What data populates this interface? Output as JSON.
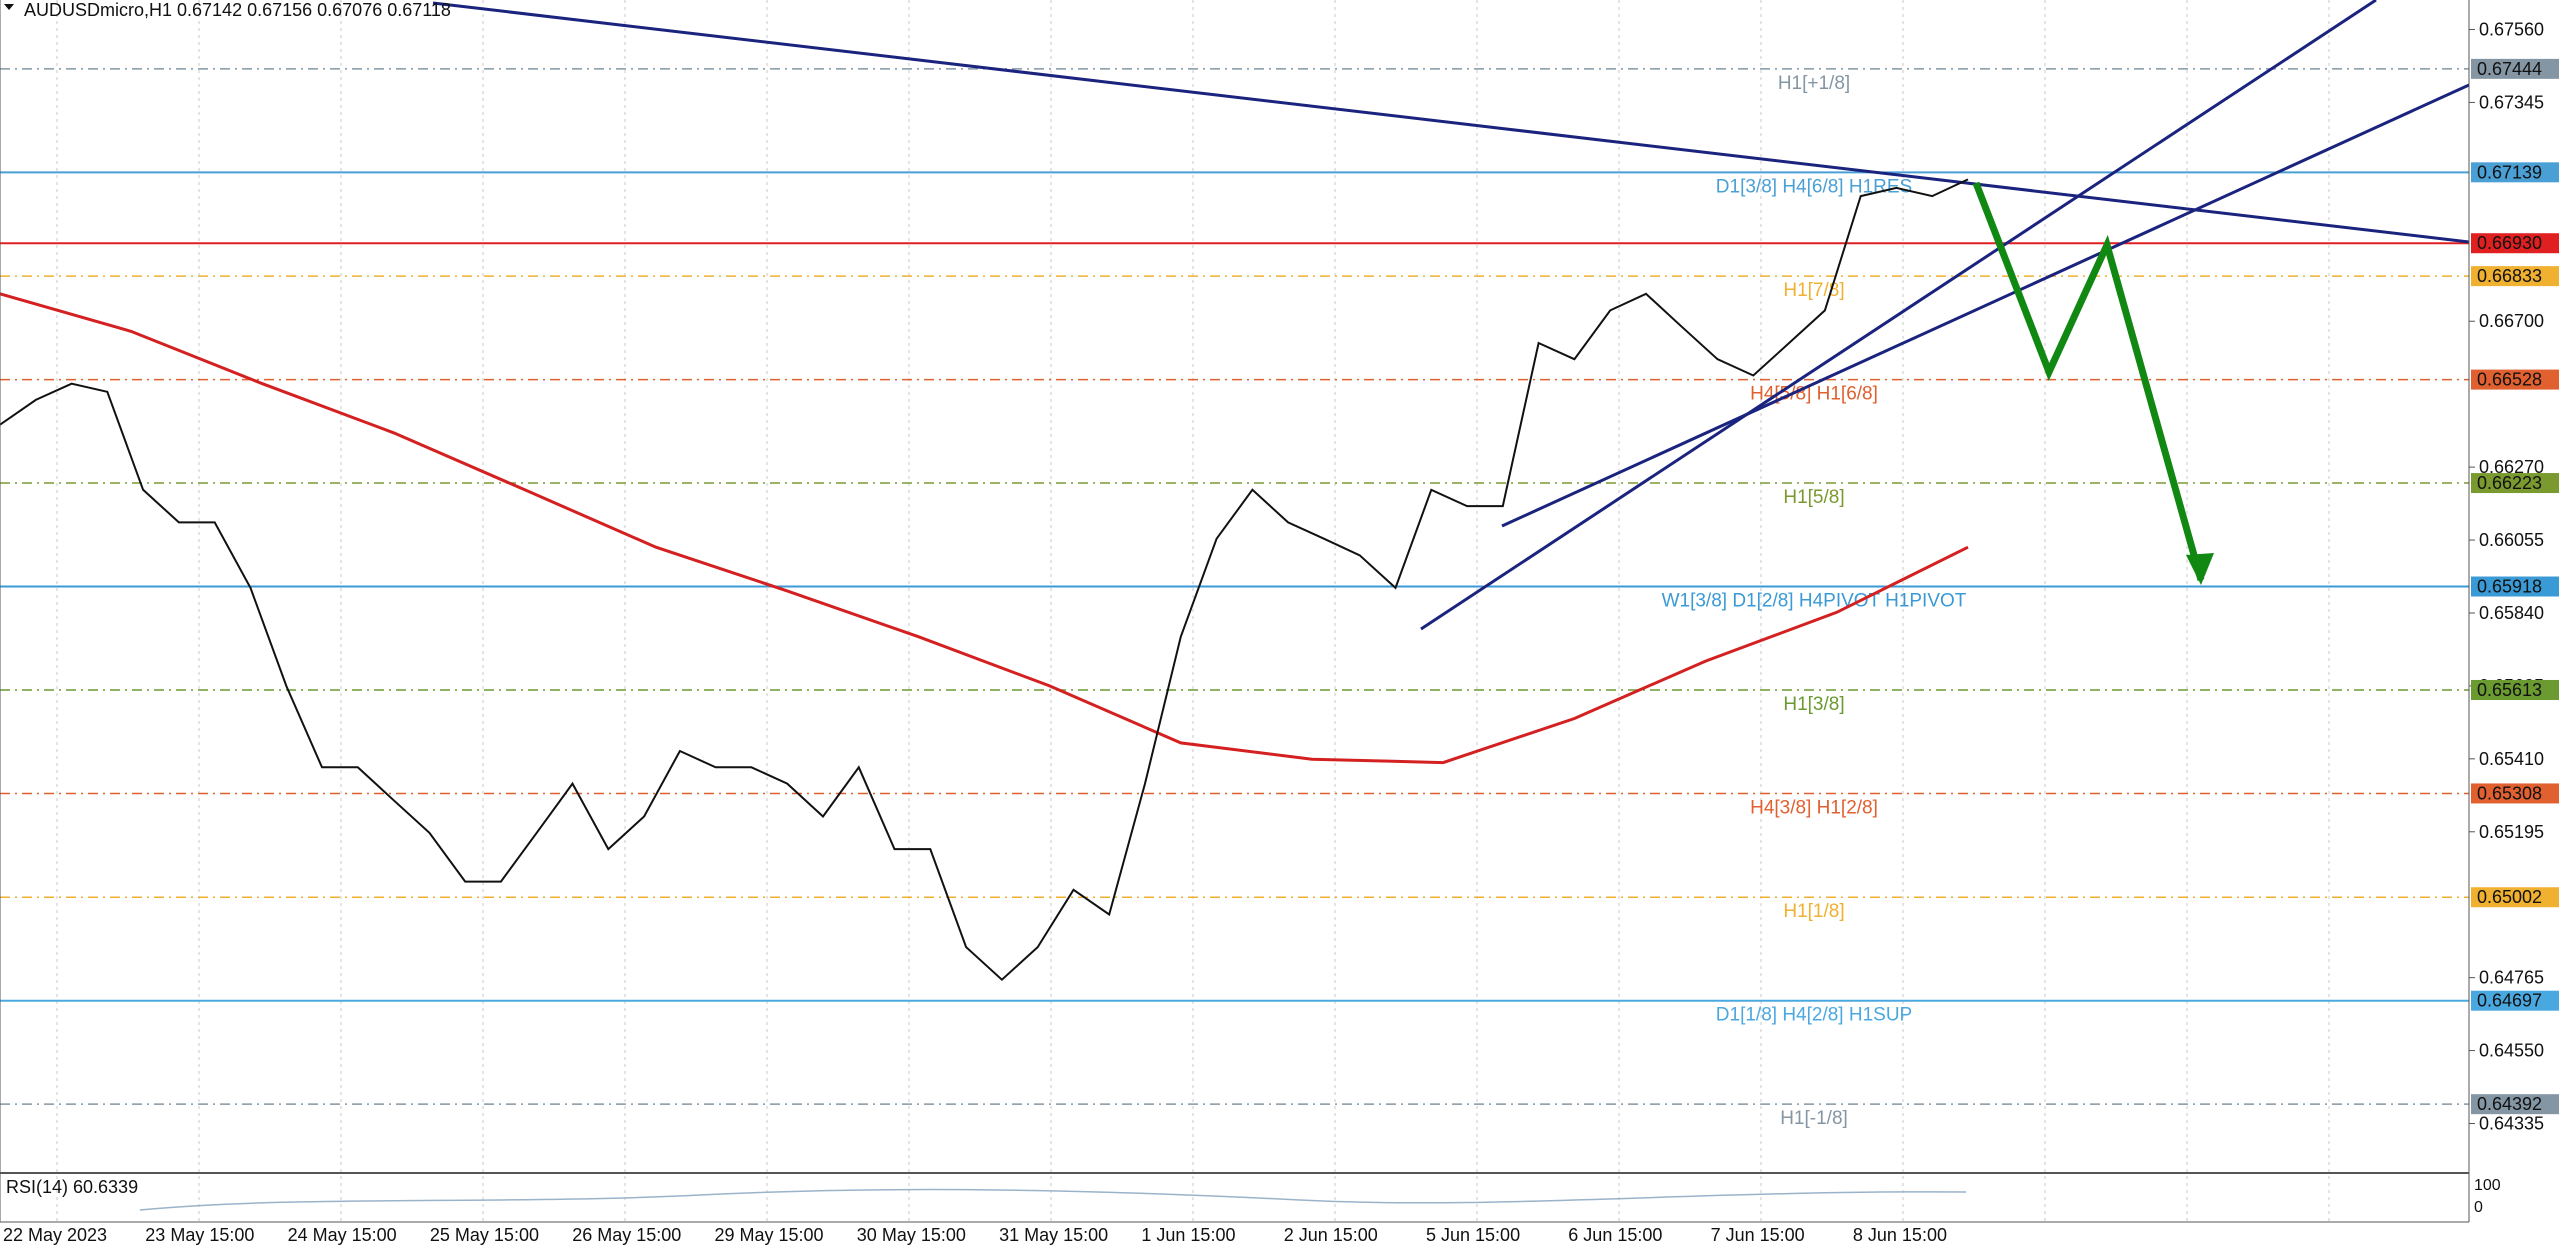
{
  "header": {
    "title": "AUDUSDmicro,H1  0.67142 0.67156 0.67076 0.67118"
  },
  "price_scale": {
    "ylim": [
      0.64195,
      0.67647
    ],
    "ticks": [
      {
        "value": 0.6756,
        "label": "0.67560"
      },
      {
        "value": 0.67345,
        "label": "0.67345"
      },
      {
        "value": 0.667,
        "label": "0.66700"
      },
      {
        "value": 0.6627,
        "label": "0.66270"
      },
      {
        "value": 0.66055,
        "label": "0.66055"
      },
      {
        "value": 0.6584,
        "label": "0.65840"
      },
      {
        "value": 0.65625,
        "label": "0.65625"
      },
      {
        "value": 0.6541,
        "label": "0.65410"
      },
      {
        "value": 0.65195,
        "label": "0.65195"
      },
      {
        "value": 0.64765,
        "label": "0.64765"
      },
      {
        "value": 0.6455,
        "label": "0.64550"
      },
      {
        "value": 0.64335,
        "label": "0.64335"
      }
    ]
  },
  "levels": [
    {
      "price": {
        "value": 0.67444,
        "label": "0.67444"
      },
      "label": "H1[+1/8]",
      "color": "#8496a4",
      "solid": false
    },
    {
      "price": {
        "value": 0.67139,
        "label": "0.67139"
      },
      "label": "D1[3/8] H4[6/8] H1RES",
      "color": "#4a9fd5",
      "solid": true
    },
    {
      "price": {
        "value": 0.6693,
        "label": "0.66930"
      },
      "label": null,
      "color": "#e02020",
      "solid": true
    },
    {
      "price": {
        "value": 0.66833,
        "label": "0.66833"
      },
      "label": "H1[7/8]",
      "color": "#f0b030",
      "solid": false
    },
    {
      "price": {
        "value": 0.66528,
        "label": "0.66528"
      },
      "label": "H4[5/8] H1[6/8]",
      "color": "#e06030",
      "solid": false
    },
    {
      "price": {
        "value": 0.66223,
        "label": "0.66223"
      },
      "label": "H1[5/8]",
      "color": "#7a9a30",
      "solid": false
    },
    {
      "price": {
        "value": 0.65918,
        "label": "0.65918"
      },
      "label": "W1[3/8] D1[2/8] H4PIVOT H1PIVOT",
      "color": "#3a9ad5",
      "solid": true
    },
    {
      "price": {
        "value": 0.65613,
        "label": "0.65613"
      },
      "label": "H1[3/8]",
      "color": "#6a9a30",
      "solid": false
    },
    {
      "price": {
        "value": 0.65308,
        "label": "0.65308"
      },
      "label": "H4[3/8] H1[2/8]",
      "color": "#e06030",
      "solid": false
    },
    {
      "price": {
        "value": 0.65002,
        "label": "0.65002"
      },
      "label": "H1[1/8]",
      "color": "#f0b030",
      "solid": false
    },
    {
      "price": {
        "value": 0.64697,
        "label": "0.64697"
      },
      "label": "D1[1/8] H4[2/8] H1SUP",
      "color": "#4aa8e0",
      "solid": true
    },
    {
      "price": {
        "value": 0.64392,
        "label": "0.64392"
      },
      "label": "H1[-1/8]",
      "color": "#8496a4",
      "solid": false
    }
  ],
  "price_path": [
    0.66395,
    0.66468,
    0.66516,
    0.66492,
    0.66203,
    0.66107,
    0.66107,
    0.65914,
    0.65625,
    0.65385,
    0.65385,
    0.65288,
    0.65192,
    0.65048,
    0.65048,
    0.65192,
    0.65337,
    0.65144,
    0.6524,
    0.65433,
    0.65385,
    0.65385,
    0.65337,
    0.6524,
    0.65385,
    0.65144,
    0.65144,
    0.64855,
    0.64759,
    0.64855,
    0.65024,
    0.64951,
    0.65337,
    0.6577,
    0.66059,
    0.66203,
    0.66107,
    0.66059,
    0.6601,
    0.65914,
    0.66203,
    0.66155,
    0.66155,
    0.66636,
    0.66588,
    0.66732,
    0.66781,
    0.66684,
    0.66588,
    0.6654,
    0.66636,
    0.66732,
    0.67069,
    0.67093,
    0.67069,
    0.67118
  ],
  "moving_average": [
    0.66781,
    0.6667,
    0.66516,
    0.66371,
    0.66203,
    0.66034,
    0.65905,
    0.6577,
    0.65625,
    0.65457,
    0.65409,
    0.65399,
    0.65529,
    0.65698,
    0.65842,
    0.66034
  ],
  "rsi": {
    "label": "RSI(14) 60.6339",
    "scale_labels": [
      "100",
      "0"
    ]
  },
  "dates": [
    "22 May 2023",
    "23 May 15:00",
    "24 May 15:00",
    "25 May 15:00",
    "26 May 15:00",
    "29 May 15:00",
    "30 May 15:00",
    "31 May 15:00",
    "1 Jun 15:00",
    "2 Jun 15:00",
    "5 Jun 15:00",
    "6 Jun 15:00",
    "7 Jun 15:00",
    "8 Jun 15:00"
  ]
}
